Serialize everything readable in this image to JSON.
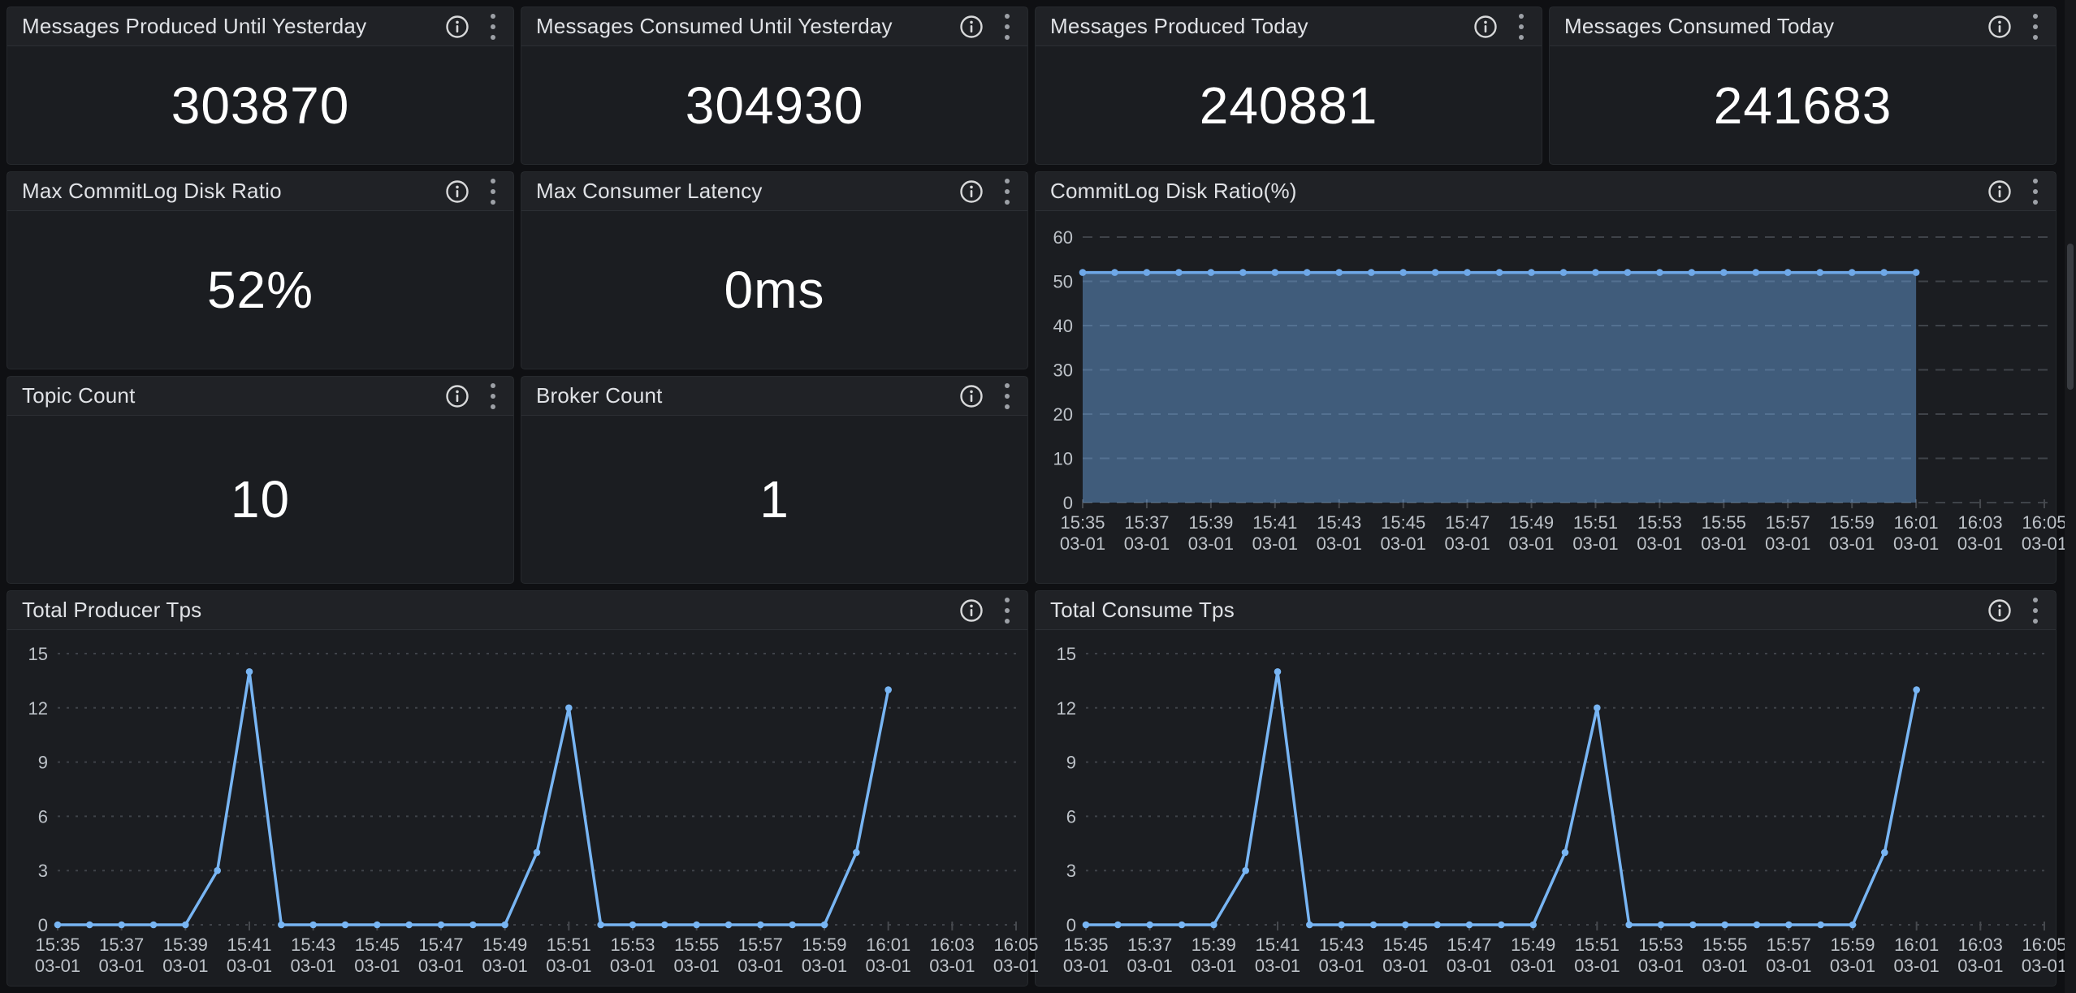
{
  "stats": [
    {
      "title": "Messages Produced Until Yesterday",
      "value": "303870"
    },
    {
      "title": "Messages Consumed Until Yesterday",
      "value": "304930"
    },
    {
      "title": "Messages Produced Today",
      "value": "240881"
    },
    {
      "title": "Messages Consumed Today",
      "value": "241683"
    },
    {
      "title": "Max CommitLog Disk Ratio",
      "value": "52%"
    },
    {
      "title": "Max Consumer Latency",
      "value": "0ms"
    },
    {
      "title": "Topic Count",
      "value": "10"
    },
    {
      "title": "Broker Count",
      "value": "1"
    }
  ],
  "icons": {
    "info-icon": "ⓘ",
    "kebab-menu-icon": "⋮"
  },
  "colors": {
    "page_bg": "#0f1013",
    "panel_bg": "#1b1d21",
    "grid": "#3f4349",
    "axis_text": "#bdc2c8",
    "commitlog_line": "#6ea8e8",
    "commitlog_fill": "rgba(110,168,232,0.46)",
    "tps_line": "#78b5f3"
  },
  "chart_data": [
    {
      "id": "commitlog-disk-ratio",
      "type": "area",
      "title": "CommitLog Disk Ratio(%)",
      "ylim": [
        0,
        60
      ],
      "yticks": [
        0,
        10,
        20,
        30,
        40,
        50,
        60
      ],
      "x_ticks": [
        "15:35",
        "15:37",
        "15:39",
        "15:41",
        "15:43",
        "15:45",
        "15:47",
        "15:49",
        "15:51",
        "15:53",
        "15:55",
        "15:57",
        "15:59",
        "16:01",
        "16:03",
        "16:05"
      ],
      "x_tick_date": "03-01",
      "x_tick_interval_min": 2,
      "x_total_minutes": 30,
      "start_minute": 0,
      "step_minute": 1,
      "values": [
        52,
        52,
        52,
        52,
        52,
        52,
        52,
        52,
        52,
        52,
        52,
        52,
        52,
        52,
        52,
        52,
        52,
        52,
        52,
        52,
        52,
        52,
        52,
        52,
        52,
        52,
        52
      ],
      "grid": "dashed",
      "legend": "none",
      "line_color": "#6ea8e8",
      "fill": "rgba(110,168,232,0.46)",
      "show_points": true,
      "dash": "12 9",
      "margins": {
        "t": 32,
        "r": 14,
        "b": 99,
        "l": 58
      }
    },
    {
      "id": "total-producer-tps",
      "type": "line",
      "title": "Total Producer Tps",
      "ylim": [
        0,
        15
      ],
      "yticks": [
        0,
        3,
        6,
        9,
        12,
        15
      ],
      "x_ticks": [
        "15:35",
        "15:37",
        "15:39",
        "15:41",
        "15:43",
        "15:45",
        "15:47",
        "15:49",
        "15:51",
        "15:53",
        "15:55",
        "15:57",
        "15:59",
        "16:01",
        "16:03",
        "16:05"
      ],
      "x_tick_date": "03-01",
      "x_tick_interval_min": 2,
      "x_total_minutes": 30,
      "start_minute": 0,
      "step_minute": 1,
      "values": [
        0,
        0,
        0,
        0,
        0,
        3,
        14,
        0,
        0,
        0,
        0,
        0,
        0,
        0,
        0,
        4,
        12,
        0,
        0,
        0,
        0,
        0,
        0,
        0,
        0,
        4,
        13
      ],
      "grid": "dashed",
      "legend": "none",
      "line_color": "#78b5f3",
      "fill": null,
      "show_points": true,
      "dash": "3 8",
      "margins": {
        "t": 29,
        "r": 14,
        "b": 75,
        "l": 62
      }
    },
    {
      "id": "total-consume-tps",
      "type": "line",
      "title": "Total Consume Tps",
      "ylim": [
        0,
        15
      ],
      "yticks": [
        0,
        3,
        6,
        9,
        12,
        15
      ],
      "x_ticks": [
        "15:35",
        "15:37",
        "15:39",
        "15:41",
        "15:43",
        "15:45",
        "15:47",
        "15:49",
        "15:51",
        "15:53",
        "15:55",
        "15:57",
        "15:59",
        "16:01",
        "16:03",
        "16:05"
      ],
      "x_tick_date": "03-01",
      "x_tick_interval_min": 2,
      "x_total_minutes": 30,
      "start_minute": 0,
      "step_minute": 1,
      "values": [
        0,
        0,
        0,
        0,
        0,
        3,
        14,
        0,
        0,
        0,
        0,
        0,
        0,
        0,
        0,
        4,
        12,
        0,
        0,
        0,
        0,
        0,
        0,
        0,
        0,
        4,
        13
      ],
      "grid": "dashed",
      "legend": "none",
      "line_color": "#78b5f3",
      "fill": null,
      "show_points": true,
      "dash": "3 8",
      "margins": {
        "t": 29,
        "r": 14,
        "b": 75,
        "l": 62
      }
    }
  ]
}
